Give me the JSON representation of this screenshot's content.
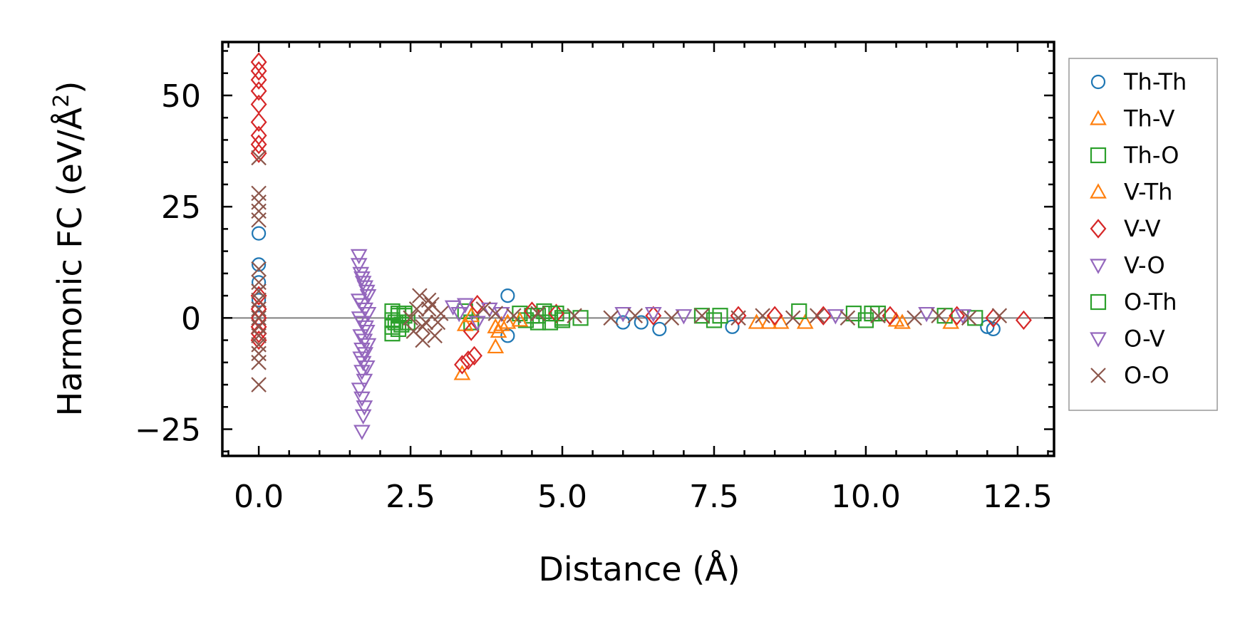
{
  "chart_data": {
    "type": "scatter",
    "title": "",
    "xlabel": "Distance (Å)",
    "ylabel": "Harmonic FC (eV/Å²)",
    "ylabel_main": "Harmonic FC (eV/Å",
    "ylabel_sup": "2",
    "ylabel_close": ")",
    "xlim": [
      -0.6,
      13.1
    ],
    "ylim": [
      -31,
      62
    ],
    "xticks": [
      0.0,
      2.5,
      5.0,
      7.5,
      10.0,
      12.5
    ],
    "xtick_labels": [
      "0.0",
      "2.5",
      "5.0",
      "7.5",
      "10.0",
      "12.5"
    ],
    "yticks": [
      -25,
      0,
      25,
      50
    ],
    "ytick_labels": [
      "−25",
      "0",
      "25",
      "50"
    ],
    "zero_line": true,
    "grid": false,
    "legend_position": "right-outside",
    "series": [
      {
        "name": "Th-Th",
        "marker": "circle",
        "color": "#1f77b4",
        "x": [
          0.0,
          0.0,
          0.0,
          0.0,
          0.0,
          4.1,
          4.1,
          6.0,
          6.3,
          6.6,
          7.8,
          12.0,
          12.1
        ],
        "y": [
          19,
          12,
          8,
          4,
          0,
          5,
          -4,
          -1,
          -1,
          -2.5,
          -2,
          -2,
          -2.5
        ]
      },
      {
        "name": "Th-V",
        "marker": "triangle-up",
        "color": "#ff7f0e",
        "x": [
          3.35,
          3.9,
          3.95,
          4.0,
          8.2,
          8.6,
          9.0,
          10.6,
          11.4
        ],
        "y": [
          -12.5,
          -6.5,
          -3,
          -1.5,
          -1,
          -1,
          -1,
          -1,
          -1
        ]
      },
      {
        "name": "Th-O",
        "marker": "square",
        "color": "#2ca02c",
        "x": [
          2.2,
          2.2,
          2.2,
          2.2,
          2.3,
          2.3,
          2.4,
          2.45,
          3.4,
          3.5,
          4.3,
          4.4,
          4.5,
          4.6,
          4.7,
          4.8,
          4.9,
          5.0,
          5.3,
          7.3,
          7.5,
          8.9,
          9.8,
          10.0,
          10.1,
          11.3,
          11.8
        ],
        "y": [
          1.5,
          -0.5,
          -2,
          -3.5,
          1,
          -2.5,
          0.5,
          -1,
          1.5,
          -1,
          1,
          -0.5,
          0.5,
          -1,
          1.5,
          -1,
          1,
          -0.5,
          0,
          0.5,
          -0.5,
          1.5,
          1,
          -0.5,
          1,
          0.5,
          0
        ]
      },
      {
        "name": "V-Th",
        "marker": "triangle-up",
        "color": "#ff7f0e",
        "x": [
          3.4,
          3.5,
          3.9,
          4.1,
          4.3,
          8.4,
          10.5
        ],
        "y": [
          -1.5,
          0.5,
          -2,
          -1,
          -0.5,
          -1,
          -0.5
        ]
      },
      {
        "name": "V-V",
        "marker": "diamond",
        "color": "#d62728",
        "x": [
          0.0,
          0.0,
          0.0,
          0.0,
          0.0,
          0.0,
          0.0,
          0.0,
          0.0,
          0.0,
          0.0,
          0.0,
          0.0,
          0.0,
          0.0,
          3.35,
          3.45,
          3.55,
          3.5,
          3.6,
          4.5,
          4.9,
          6.5,
          7.9,
          8.5,
          9.3,
          10.4,
          11.5,
          12.1,
          12.6
        ],
        "y": [
          57.5,
          55.5,
          53.5,
          51,
          48,
          44,
          41,
          39,
          37,
          5,
          2,
          0,
          -2,
          -3.5,
          -5,
          -10.5,
          -9.5,
          -8.5,
          -3,
          3,
          1.5,
          1,
          0.5,
          0.5,
          0.5,
          0.5,
          0.5,
          0.5,
          0,
          -0.5
        ]
      },
      {
        "name": "V-O",
        "marker": "triangle-down",
        "color": "#9467bd",
        "x": [
          3.2,
          3.3,
          3.4,
          3.6,
          3.8,
          4.0,
          6.0,
          6.5,
          7.0,
          9.5,
          11.0,
          11.6
        ],
        "y": [
          2.5,
          1,
          3,
          -1,
          2,
          1,
          1,
          1,
          0.5,
          0.5,
          1,
          0.5
        ]
      },
      {
        "name": "O-Th",
        "marker": "square",
        "color": "#2ca02c",
        "x": [
          2.25,
          2.3,
          2.35,
          2.4,
          4.6,
          4.8,
          5.0,
          7.6,
          10.2
        ],
        "y": [
          -1,
          0.5,
          -1.5,
          1,
          0.5,
          1,
          0,
          0.5,
          1
        ]
      },
      {
        "name": "O-V",
        "marker": "triangle-down",
        "color": "#9467bd",
        "x": [
          1.65,
          1.65,
          1.68,
          1.7,
          1.72,
          1.75,
          1.78,
          1.8,
          1.65,
          1.7,
          1.75,
          1.8,
          1.66,
          1.7,
          1.76,
          1.78,
          1.68,
          1.74,
          1.8,
          1.7,
          1.75,
          1.68,
          1.72,
          1.78,
          1.7,
          1.74,
          1.66,
          1.7,
          1.74,
          1.72,
          1.7
        ],
        "y": [
          14,
          12,
          10,
          9,
          8,
          7,
          6,
          5,
          4,
          3,
          2,
          1,
          0,
          -1,
          -2,
          -3,
          -4,
          -5,
          -6,
          -7,
          -8,
          -9,
          -10,
          -11,
          -12,
          -14,
          -16,
          -18,
          -20,
          -22,
          -25.5
        ]
      },
      {
        "name": "O-O",
        "marker": "x",
        "color": "#8c564b",
        "x": [
          0.0,
          0.0,
          0.0,
          0.0,
          0.0,
          0.0,
          0.0,
          0.0,
          0.0,
          0.0,
          0.0,
          0.0,
          0.0,
          0.0,
          0.0,
          0.0,
          0.0,
          2.5,
          2.6,
          2.7,
          2.8,
          2.9,
          3.0,
          2.65,
          2.75,
          2.85,
          2.55,
          2.95,
          2.7,
          2.8,
          3.7,
          3.9,
          4.2,
          4.6,
          5.2,
          5.8,
          6.2,
          6.8,
          7.3,
          7.9,
          8.3,
          8.8,
          9.2,
          9.7,
          10.2,
          10.8,
          11.2,
          11.7,
          12.2
        ],
        "y": [
          36,
          28,
          26,
          24,
          22,
          11,
          8,
          6,
          4,
          2,
          0,
          -2,
          -4,
          -6,
          -8,
          -10,
          -15,
          0,
          2,
          -2,
          4,
          -4,
          1,
          5,
          -1,
          3,
          -3,
          -1,
          -5,
          2,
          2,
          1,
          0.5,
          1,
          0.5,
          0,
          0.5,
          0,
          0.5,
          0,
          0.5,
          0,
          0.5,
          0,
          0.5,
          0,
          0.5,
          0,
          0.5
        ]
      }
    ]
  }
}
